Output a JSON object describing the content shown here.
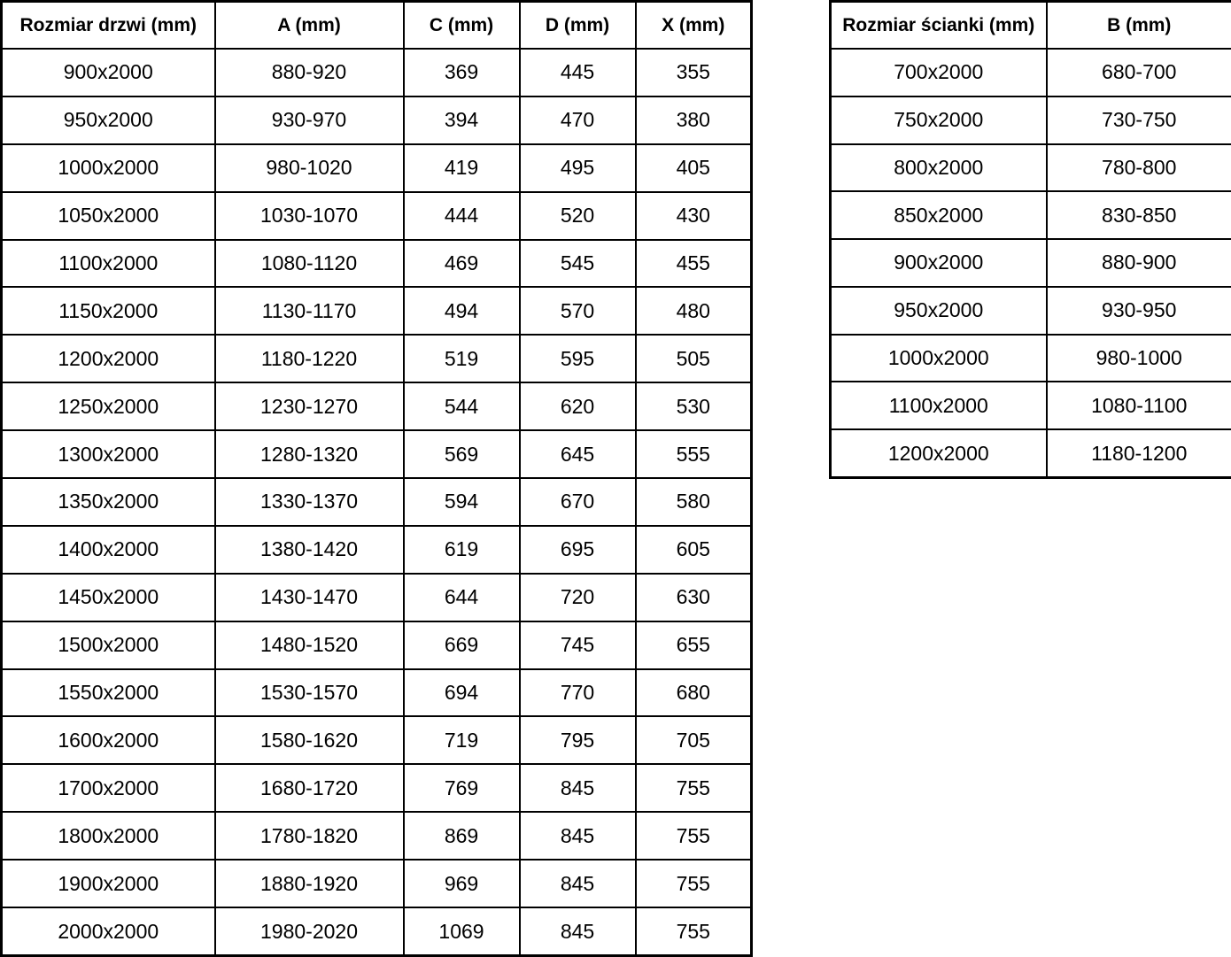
{
  "colors": {
    "background": "#ffffff",
    "text": "#000000",
    "border": "#000000"
  },
  "door_table": {
    "headers": [
      "Rozmiar drzwi (mm)",
      "A (mm)",
      "C (mm)",
      "D (mm)",
      "X (mm)"
    ],
    "rows": [
      [
        "900x2000",
        "880-920",
        "369",
        "445",
        "355"
      ],
      [
        "950x2000",
        "930-970",
        "394",
        "470",
        "380"
      ],
      [
        "1000x2000",
        "980-1020",
        "419",
        "495",
        "405"
      ],
      [
        "1050x2000",
        "1030-1070",
        "444",
        "520",
        "430"
      ],
      [
        "1100x2000",
        "1080-1120",
        "469",
        "545",
        "455"
      ],
      [
        "1150x2000",
        "1130-1170",
        "494",
        "570",
        "480"
      ],
      [
        "1200x2000",
        "1180-1220",
        "519",
        "595",
        "505"
      ],
      [
        "1250x2000",
        "1230-1270",
        "544",
        "620",
        "530"
      ],
      [
        "1300x2000",
        "1280-1320",
        "569",
        "645",
        "555"
      ],
      [
        "1350x2000",
        "1330-1370",
        "594",
        "670",
        "580"
      ],
      [
        "1400x2000",
        "1380-1420",
        "619",
        "695",
        "605"
      ],
      [
        "1450x2000",
        "1430-1470",
        "644",
        "720",
        "630"
      ],
      [
        "1500x2000",
        "1480-1520",
        "669",
        "745",
        "655"
      ],
      [
        "1550x2000",
        "1530-1570",
        "694",
        "770",
        "680"
      ],
      [
        "1600x2000",
        "1580-1620",
        "719",
        "795",
        "705"
      ],
      [
        "1700x2000",
        "1680-1720",
        "769",
        "845",
        "755"
      ],
      [
        "1800x2000",
        "1780-1820",
        "869",
        "845",
        "755"
      ],
      [
        "1900x2000",
        "1880-1920",
        "969",
        "845",
        "755"
      ],
      [
        "2000x2000",
        "1980-2020",
        "1069",
        "845",
        "755"
      ]
    ]
  },
  "wall_table": {
    "headers": [
      "Rozmiar ścianki (mm)",
      "B (mm)"
    ],
    "rows": [
      [
        "700x2000",
        "680-700"
      ],
      [
        "750x2000",
        "730-750"
      ],
      [
        "800x2000",
        "780-800"
      ],
      [
        "850x2000",
        "830-850"
      ],
      [
        "900x2000",
        "880-900"
      ],
      [
        "950x2000",
        "930-950"
      ],
      [
        "1000x2000",
        "980-1000"
      ],
      [
        "1100x2000",
        "1080-1100"
      ],
      [
        "1200x2000",
        "1180-1200"
      ]
    ]
  }
}
